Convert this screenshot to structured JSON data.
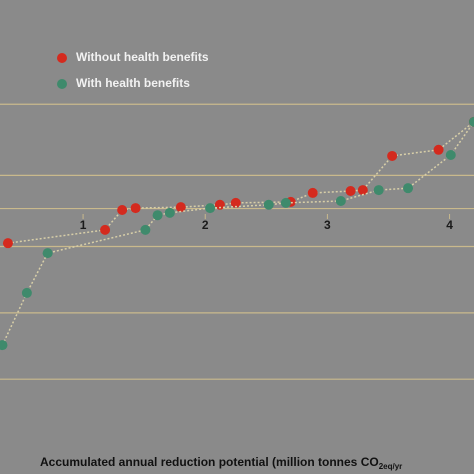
{
  "chart_data": {
    "type": "line",
    "x_label": "Accumulated annual reduction potential (million tonnes CO",
    "x_label_sub": "2eq/yr",
    "xlim": [
      0.32,
      4.2
    ],
    "xticks": [
      1,
      2,
      3,
      4
    ],
    "ylim": [
      0,
      100
    ],
    "yticks": [
      20,
      34,
      48,
      56,
      63,
      78
    ],
    "grid": true,
    "series": [
      {
        "name": "Without health benefits",
        "color": "#d42a1e",
        "x": [
          0.385,
          1.18,
          1.32,
          1.43,
          1.8,
          2.12,
          2.25,
          2.7,
          2.88,
          3.19,
          3.29,
          3.53,
          3.91,
          4.2
        ],
        "values": [
          48.7,
          51.5,
          55.7,
          56.1,
          56.3,
          56.8,
          57.2,
          57.4,
          59.3,
          59.7,
          59.9,
          67.1,
          68.4,
          74.3
        ]
      },
      {
        "name": "With health benefits",
        "color": "#3f8a6c",
        "x": [
          0.34,
          0.54,
          0.71,
          1.51,
          1.61,
          1.71,
          2.04,
          2.52,
          2.66,
          3.11,
          3.42,
          3.66,
          4.01,
          4.2
        ],
        "values": [
          27.2,
          38.2,
          46.6,
          51.5,
          54.6,
          55.1,
          56.1,
          56.8,
          57.2,
          57.6,
          59.9,
          60.3,
          67.3,
          74.3
        ]
      }
    ]
  }
}
